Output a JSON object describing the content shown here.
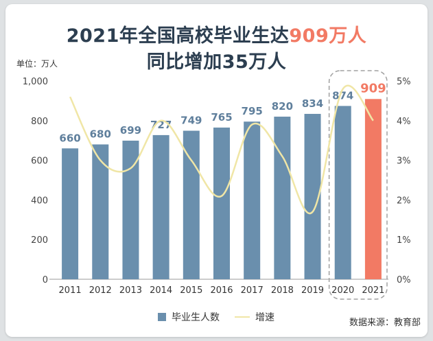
{
  "title_line1_prefix": "2021年全国高校毕业生达",
  "title_line1_highlight": "909万人",
  "title_line2": "同比增加35万人",
  "unit_label": "单位：万人",
  "source": "数据来源：教育部",
  "colors": {
    "bar": "#6a8fad",
    "highlight_bar": "#f27a64",
    "growth_line": "#f0e6a6",
    "title": "#2c3e50",
    "value_label": "#5f7f9c"
  },
  "chart_data": {
    "type": "bar",
    "title": "2021年全国高校毕业生达909万人 同比增加35万人",
    "categories": [
      "2011",
      "2012",
      "2013",
      "2014",
      "2015",
      "2016",
      "2017",
      "2018",
      "2019",
      "2020",
      "2021"
    ],
    "series": [
      {
        "name": "毕业生人数",
        "type": "bar",
        "axis": "left",
        "values": [
          660,
          680,
          699,
          727,
          749,
          765,
          795,
          820,
          834,
          874,
          909
        ]
      },
      {
        "name": "增速",
        "type": "line",
        "axis": "right",
        "values": [
          4.6,
          3.0,
          2.8,
          4.0,
          3.0,
          2.1,
          3.9,
          3.1,
          1.7,
          4.8,
          4.0
        ]
      }
    ],
    "yaxis_left": {
      "min": 0,
      "max": 1000,
      "ticks": [
        0,
        200,
        400,
        600,
        800,
        1000
      ],
      "tick_labels": [
        "0",
        "200",
        "400",
        "600",
        "800",
        "1,000"
      ]
    },
    "yaxis_right": {
      "min": 0,
      "max": 5,
      "ticks": [
        0,
        1,
        2,
        3,
        4,
        5
      ],
      "tick_labels": [
        "0%",
        "1%",
        "2%",
        "3%",
        "4%",
        "5%"
      ]
    },
    "highlight_indices": [
      9,
      10
    ],
    "legend": [
      {
        "label": "毕业生人数",
        "kind": "bar"
      },
      {
        "label": "增速",
        "kind": "line"
      }
    ],
    "legend_position": "bottom"
  }
}
